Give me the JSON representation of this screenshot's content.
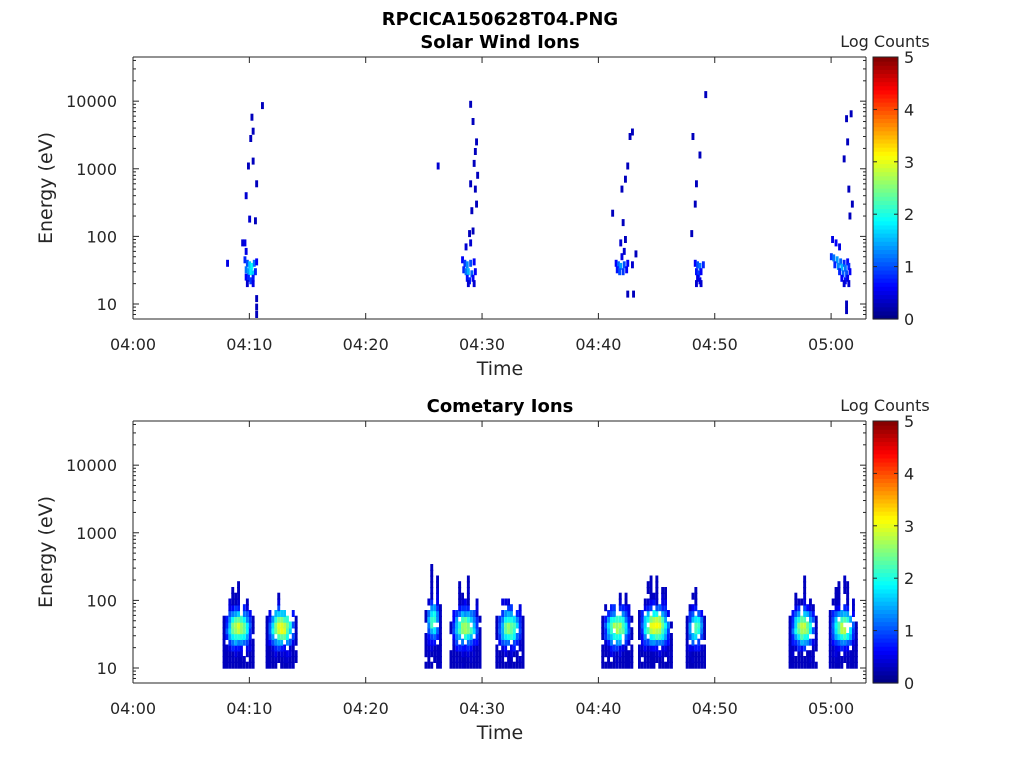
{
  "figure": {
    "title": "RPCICA150628T04.PNG"
  },
  "chart_data": [
    {
      "type": "heatmap",
      "title": "Solar Wind Ions",
      "xlabel": "Time",
      "ylabel": "Energy (eV)",
      "xticks": [
        "04:00",
        "04:10",
        "04:20",
        "04:30",
        "04:40",
        "04:50",
        "05:00"
      ],
      "xlim_minutes": [
        0,
        63
      ],
      "yscale": "log",
      "ylim": [
        6,
        45000
      ],
      "yticks": [
        "10",
        "100",
        "1000",
        "10000"
      ],
      "colorbar": {
        "label": "Log Counts",
        "ticks": [
          "0",
          "1",
          "2",
          "3",
          "4",
          "5"
        ],
        "range": [
          0,
          5
        ],
        "colormap": "jet"
      },
      "cells": [
        [
          8.0,
          40,
          0.5
        ],
        [
          9.3,
          80,
          0.4
        ],
        [
          9.5,
          80,
          0.5
        ],
        [
          9.6,
          60,
          0.5
        ],
        [
          9.5,
          45,
          0.8
        ],
        [
          9.7,
          40,
          1.0
        ],
        [
          9.9,
          38,
          1.6
        ],
        [
          10.1,
          36,
          1.9
        ],
        [
          10.3,
          40,
          1.2
        ],
        [
          10.5,
          42,
          0.6
        ],
        [
          9.6,
          32,
          1.2
        ],
        [
          9.8,
          30,
          1.4
        ],
        [
          10.0,
          30,
          1.8
        ],
        [
          10.2,
          28,
          1.6
        ],
        [
          10.4,
          30,
          0.8
        ],
        [
          9.6,
          25,
          0.6
        ],
        [
          9.8,
          24,
          0.8
        ],
        [
          10.0,
          22,
          0.9
        ],
        [
          10.2,
          24,
          0.7
        ],
        [
          9.7,
          20,
          0.4
        ],
        [
          10.2,
          20,
          0.5
        ],
        [
          10.5,
          12,
          0.3
        ],
        [
          10.5,
          9,
          0.3
        ],
        [
          10.5,
          7,
          0.3
        ],
        [
          9.6,
          400,
          0.4
        ],
        [
          9.9,
          180,
          0.4
        ],
        [
          10.4,
          170,
          0.3
        ],
        [
          9.8,
          1100,
          0.3
        ],
        [
          10.2,
          1300,
          0.3
        ],
        [
          10.5,
          600,
          0.3
        ],
        [
          10.0,
          2800,
          0.3
        ],
        [
          10.2,
          3600,
          0.3
        ],
        [
          10.1,
          5800,
          0.3
        ],
        [
          11.0,
          8600,
          0.3
        ],
        [
          26.1,
          1100,
          0.4
        ],
        [
          28.2,
          45,
          0.6
        ],
        [
          28.4,
          40,
          0.9
        ],
        [
          28.6,
          38,
          1.3
        ],
        [
          28.9,
          40,
          1.0
        ],
        [
          29.2,
          42,
          0.6
        ],
        [
          28.3,
          32,
          0.8
        ],
        [
          28.5,
          30,
          1.2
        ],
        [
          28.7,
          30,
          1.5
        ],
        [
          29.0,
          28,
          1.1
        ],
        [
          29.3,
          30,
          0.6
        ],
        [
          28.6,
          24,
          0.7
        ],
        [
          28.8,
          22,
          0.8
        ],
        [
          29.1,
          24,
          0.6
        ],
        [
          28.7,
          20,
          0.4
        ],
        [
          29.2,
          20,
          0.4
        ],
        [
          28.5,
          70,
          0.4
        ],
        [
          28.9,
          80,
          0.4
        ],
        [
          28.8,
          110,
          0.3
        ],
        [
          29.1,
          120,
          0.3
        ],
        [
          29.4,
          300,
          0.3
        ],
        [
          29.0,
          240,
          0.3
        ],
        [
          29.3,
          500,
          0.3
        ],
        [
          29.5,
          800,
          0.3
        ],
        [
          28.9,
          600,
          0.3
        ],
        [
          29.2,
          1200,
          0.3
        ],
        [
          29.3,
          1800,
          0.3
        ],
        [
          29.4,
          2500,
          0.3
        ],
        [
          29.1,
          5000,
          0.3
        ],
        [
          28.9,
          9000,
          0.3
        ],
        [
          41.4,
          40,
          0.6
        ],
        [
          41.6,
          38,
          1.1
        ],
        [
          41.8,
          36,
          1.4
        ],
        [
          42.1,
          38,
          1.0
        ],
        [
          42.4,
          40,
          0.6
        ],
        [
          42.8,
          38,
          0.4
        ],
        [
          41.5,
          32,
          0.7
        ],
        [
          41.7,
          30,
          1.0
        ],
        [
          42.0,
          30,
          0.9
        ],
        [
          42.3,
          32,
          0.6
        ],
        [
          41.9,
          50,
          0.5
        ],
        [
          42.1,
          60,
          0.4
        ],
        [
          41.8,
          80,
          0.4
        ],
        [
          42.2,
          90,
          0.3
        ],
        [
          43.1,
          55,
          0.3
        ],
        [
          42.4,
          14,
          0.3
        ],
        [
          42.9,
          14,
          0.3
        ],
        [
          41.1,
          220,
          0.3
        ],
        [
          42.0,
          160,
          0.3
        ],
        [
          41.9,
          500,
          0.3
        ],
        [
          42.2,
          700,
          0.3
        ],
        [
          42.4,
          1100,
          0.3
        ],
        [
          42.6,
          3000,
          0.3
        ],
        [
          42.8,
          3500,
          0.3
        ],
        [
          48.2,
          40,
          0.6
        ],
        [
          48.4,
          38,
          1.0
        ],
        [
          48.6,
          36,
          1.2
        ],
        [
          48.9,
          38,
          0.8
        ],
        [
          48.3,
          30,
          0.7
        ],
        [
          48.5,
          28,
          0.9
        ],
        [
          48.7,
          30,
          0.6
        ],
        [
          48.4,
          24,
          0.5
        ],
        [
          48.6,
          22,
          0.5
        ],
        [
          48.3,
          20,
          0.4
        ],
        [
          48.7,
          20,
          0.4
        ],
        [
          47.9,
          110,
          0.3
        ],
        [
          48.2,
          300,
          0.3
        ],
        [
          48.3,
          600,
          0.3
        ],
        [
          48.0,
          3000,
          0.3
        ],
        [
          48.6,
          1600,
          0.3
        ],
        [
          49.1,
          12500,
          0.3
        ],
        [
          60.0,
          90,
          0.5
        ],
        [
          60.3,
          80,
          0.6
        ],
        [
          60.6,
          70,
          0.5
        ],
        [
          59.9,
          50,
          0.9
        ],
        [
          60.1,
          48,
          1.2
        ],
        [
          60.4,
          45,
          1.4
        ],
        [
          60.7,
          42,
          1.1
        ],
        [
          61.0,
          40,
          0.8
        ],
        [
          61.3,
          42,
          0.6
        ],
        [
          60.2,
          38,
          0.8
        ],
        [
          60.5,
          36,
          1.3
        ],
        [
          60.8,
          35,
          1.5
        ],
        [
          61.1,
          34,
          1.2
        ],
        [
          61.4,
          36,
          0.8
        ],
        [
          60.6,
          30,
          0.8
        ],
        [
          60.9,
          28,
          1.1
        ],
        [
          61.2,
          28,
          1.0
        ],
        [
          61.5,
          30,
          0.6
        ],
        [
          60.8,
          24,
          0.6
        ],
        [
          61.1,
          22,
          0.7
        ],
        [
          61.3,
          24,
          0.5
        ],
        [
          61.0,
          20,
          0.4
        ],
        [
          61.4,
          20,
          0.4
        ],
        [
          61.2,
          10,
          0.3
        ],
        [
          61.2,
          8,
          0.3
        ],
        [
          61.0,
          1400,
          0.3
        ],
        [
          61.3,
          2500,
          0.3
        ],
        [
          61.2,
          5500,
          0.3
        ],
        [
          61.6,
          6500,
          0.3
        ],
        [
          61.5,
          200,
          0.3
        ],
        [
          61.7,
          300,
          0.3
        ],
        [
          61.4,
          500,
          0.3
        ]
      ]
    },
    {
      "type": "heatmap",
      "title": "Cometary Ions",
      "xlabel": "Time",
      "ylabel": "Energy (eV)",
      "xticks": [
        "04:00",
        "04:10",
        "04:20",
        "04:30",
        "04:40",
        "04:50",
        "05:00"
      ],
      "xlim_minutes": [
        0,
        63
      ],
      "yscale": "log",
      "ylim": [
        6,
        45000
      ],
      "yticks": [
        "10",
        "100",
        "1000",
        "10000"
      ],
      "colorbar": {
        "label": "Log Counts",
        "ticks": [
          "0",
          "1",
          "2",
          "3",
          "4",
          "5"
        ],
        "range": [
          0,
          5
        ],
        "colormap": "jet"
      },
      "bursts": [
        {
          "t": 9.0,
          "w": 2.6,
          "emax": 220,
          "ecore": 40,
          "peak": 2.7
        },
        {
          "t": 12.7,
          "w": 2.6,
          "emax": 160,
          "ecore": 40,
          "peak": 2.9
        },
        {
          "t": 25.7,
          "w": 1.3,
          "emax": 480,
          "ecore": 50,
          "peak": 2.2
        },
        {
          "t": 28.4,
          "w": 2.4,
          "emax": 250,
          "ecore": 40,
          "peak": 2.5
        },
        {
          "t": 32.3,
          "w": 2.3,
          "emax": 210,
          "ecore": 40,
          "peak": 2.4
        },
        {
          "t": 41.5,
          "w": 2.5,
          "emax": 230,
          "ecore": 40,
          "peak": 2.6
        },
        {
          "t": 44.8,
          "w": 2.8,
          "emax": 380,
          "ecore": 42,
          "peak": 3.0
        },
        {
          "t": 48.3,
          "w": 1.6,
          "emax": 170,
          "ecore": 40,
          "peak": 2.2
        },
        {
          "t": 57.5,
          "w": 2.3,
          "emax": 230,
          "ecore": 40,
          "peak": 2.7
        },
        {
          "t": 60.9,
          "w": 2.2,
          "emax": 290,
          "ecore": 40,
          "peak": 2.6
        }
      ]
    }
  ]
}
